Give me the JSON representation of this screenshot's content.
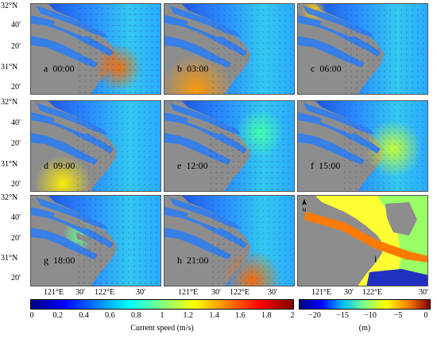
{
  "panels": [
    {
      "letter": "a",
      "time": "00:00"
    },
    {
      "letter": "b",
      "time": "03:00"
    },
    {
      "letter": "c",
      "time": "06:00"
    },
    {
      "letter": "d",
      "time": "09:00"
    },
    {
      "letter": "e",
      "time": "12:00"
    },
    {
      "letter": "f",
      "time": "15:00"
    },
    {
      "letter": "g",
      "time": "18:00"
    },
    {
      "letter": "h",
      "time": "21:00"
    },
    {
      "letter": "i",
      "time": ""
    }
  ],
  "lat_labels": [
    "32°N",
    "40′",
    "20′",
    "31°N",
    "20′"
  ],
  "lon_labels": [
    "121°E",
    "30′",
    "122°E",
    "30′"
  ],
  "colorbar_speed": {
    "ticks": [
      "0",
      "0.2",
      "0.4",
      "0.6",
      "0.8",
      "1",
      "1.2",
      "1.4",
      "1.6",
      "1.8",
      "2"
    ],
    "label": "Current speed (m/s)",
    "colors": [
      "#000080",
      "#0000ff",
      "#0080ff",
      "#00ffff",
      "#80ff80",
      "#ffff00",
      "#ff8000",
      "#ff0000",
      "#800000"
    ]
  },
  "colorbar_depth": {
    "ticks": [
      "−20",
      "−15",
      "−10",
      "−5",
      "0"
    ],
    "label": "(m)",
    "colors": [
      "#000080",
      "#0000ff",
      "#00bfff",
      "#80ff80",
      "#ffff00",
      "#ff8000",
      "#800000"
    ]
  },
  "north_arrow": "N",
  "colors": {
    "land": "#8d8d8d",
    "sea": "#1a8fff"
  }
}
